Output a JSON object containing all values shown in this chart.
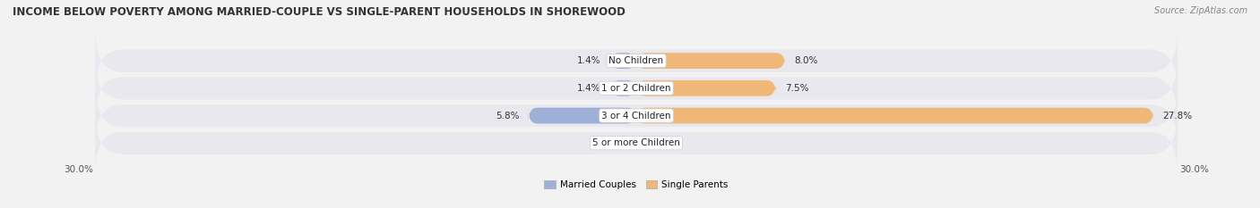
{
  "title": "INCOME BELOW POVERTY AMONG MARRIED-COUPLE VS SINGLE-PARENT HOUSEHOLDS IN SHOREWOOD",
  "source": "Source: ZipAtlas.com",
  "categories": [
    "No Children",
    "1 or 2 Children",
    "3 or 4 Children",
    "5 or more Children"
  ],
  "married_couples": [
    1.4,
    1.4,
    5.8,
    0.0
  ],
  "single_parents": [
    8.0,
    7.5,
    27.8,
    0.0
  ],
  "x_max": 30.0,
  "xticklabels_left": "30.0%",
  "xticklabels_right": "30.0%",
  "married_color": "#9eb0d8",
  "single_color": "#f0b878",
  "bar_height": 0.58,
  "row_bg_color": "#e8e8ee",
  "figure_bg_color": "#f2f2f2",
  "title_fontsize": 8.5,
  "source_fontsize": 7.0,
  "label_fontsize": 7.5,
  "value_fontsize": 7.5,
  "tick_fontsize": 7.5,
  "legend_labels": [
    "Married Couples",
    "Single Parents"
  ]
}
